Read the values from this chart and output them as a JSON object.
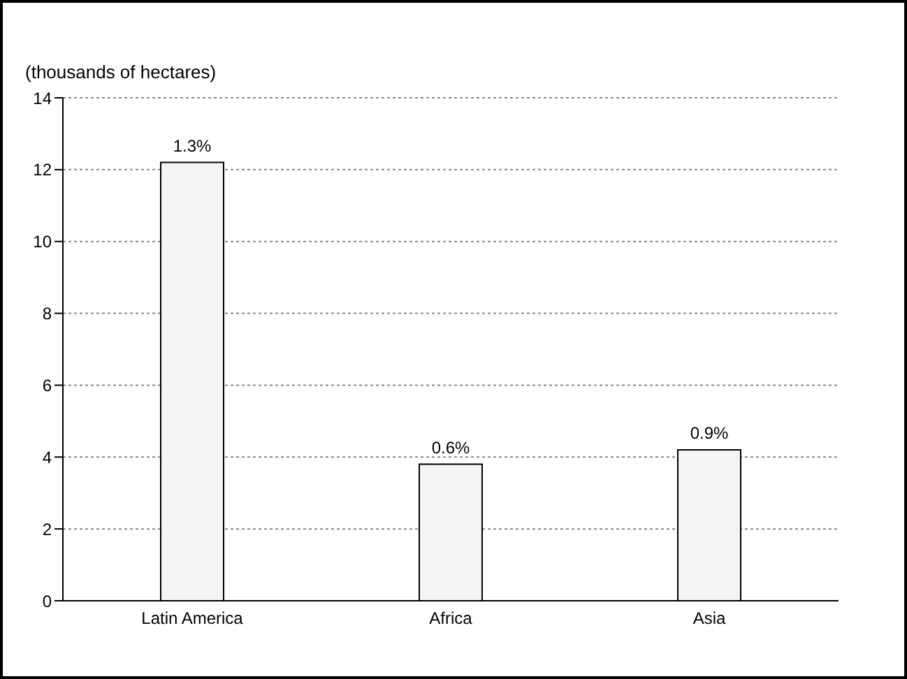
{
  "chart_data": {
    "type": "bar",
    "ylabel": "(thousands of hectares)",
    "categories": [
      "Latin America",
      "Africa",
      "Asia"
    ],
    "values": [
      12.2,
      3.8,
      4.2
    ],
    "annotations": [
      {
        "text": "1.3%",
        "x": "Latin America",
        "y": 12.2
      },
      {
        "text": "0.6%",
        "x": "Africa",
        "y": 3.8
      },
      {
        "text": "0.9%",
        "x": "Asia",
        "y": 4.2
      }
    ],
    "color": "#f4f4f4",
    "ylim": [
      0,
      14
    ],
    "yticks": [
      0,
      2,
      4,
      6,
      8,
      10,
      12,
      14
    ],
    "grid": "y"
  }
}
